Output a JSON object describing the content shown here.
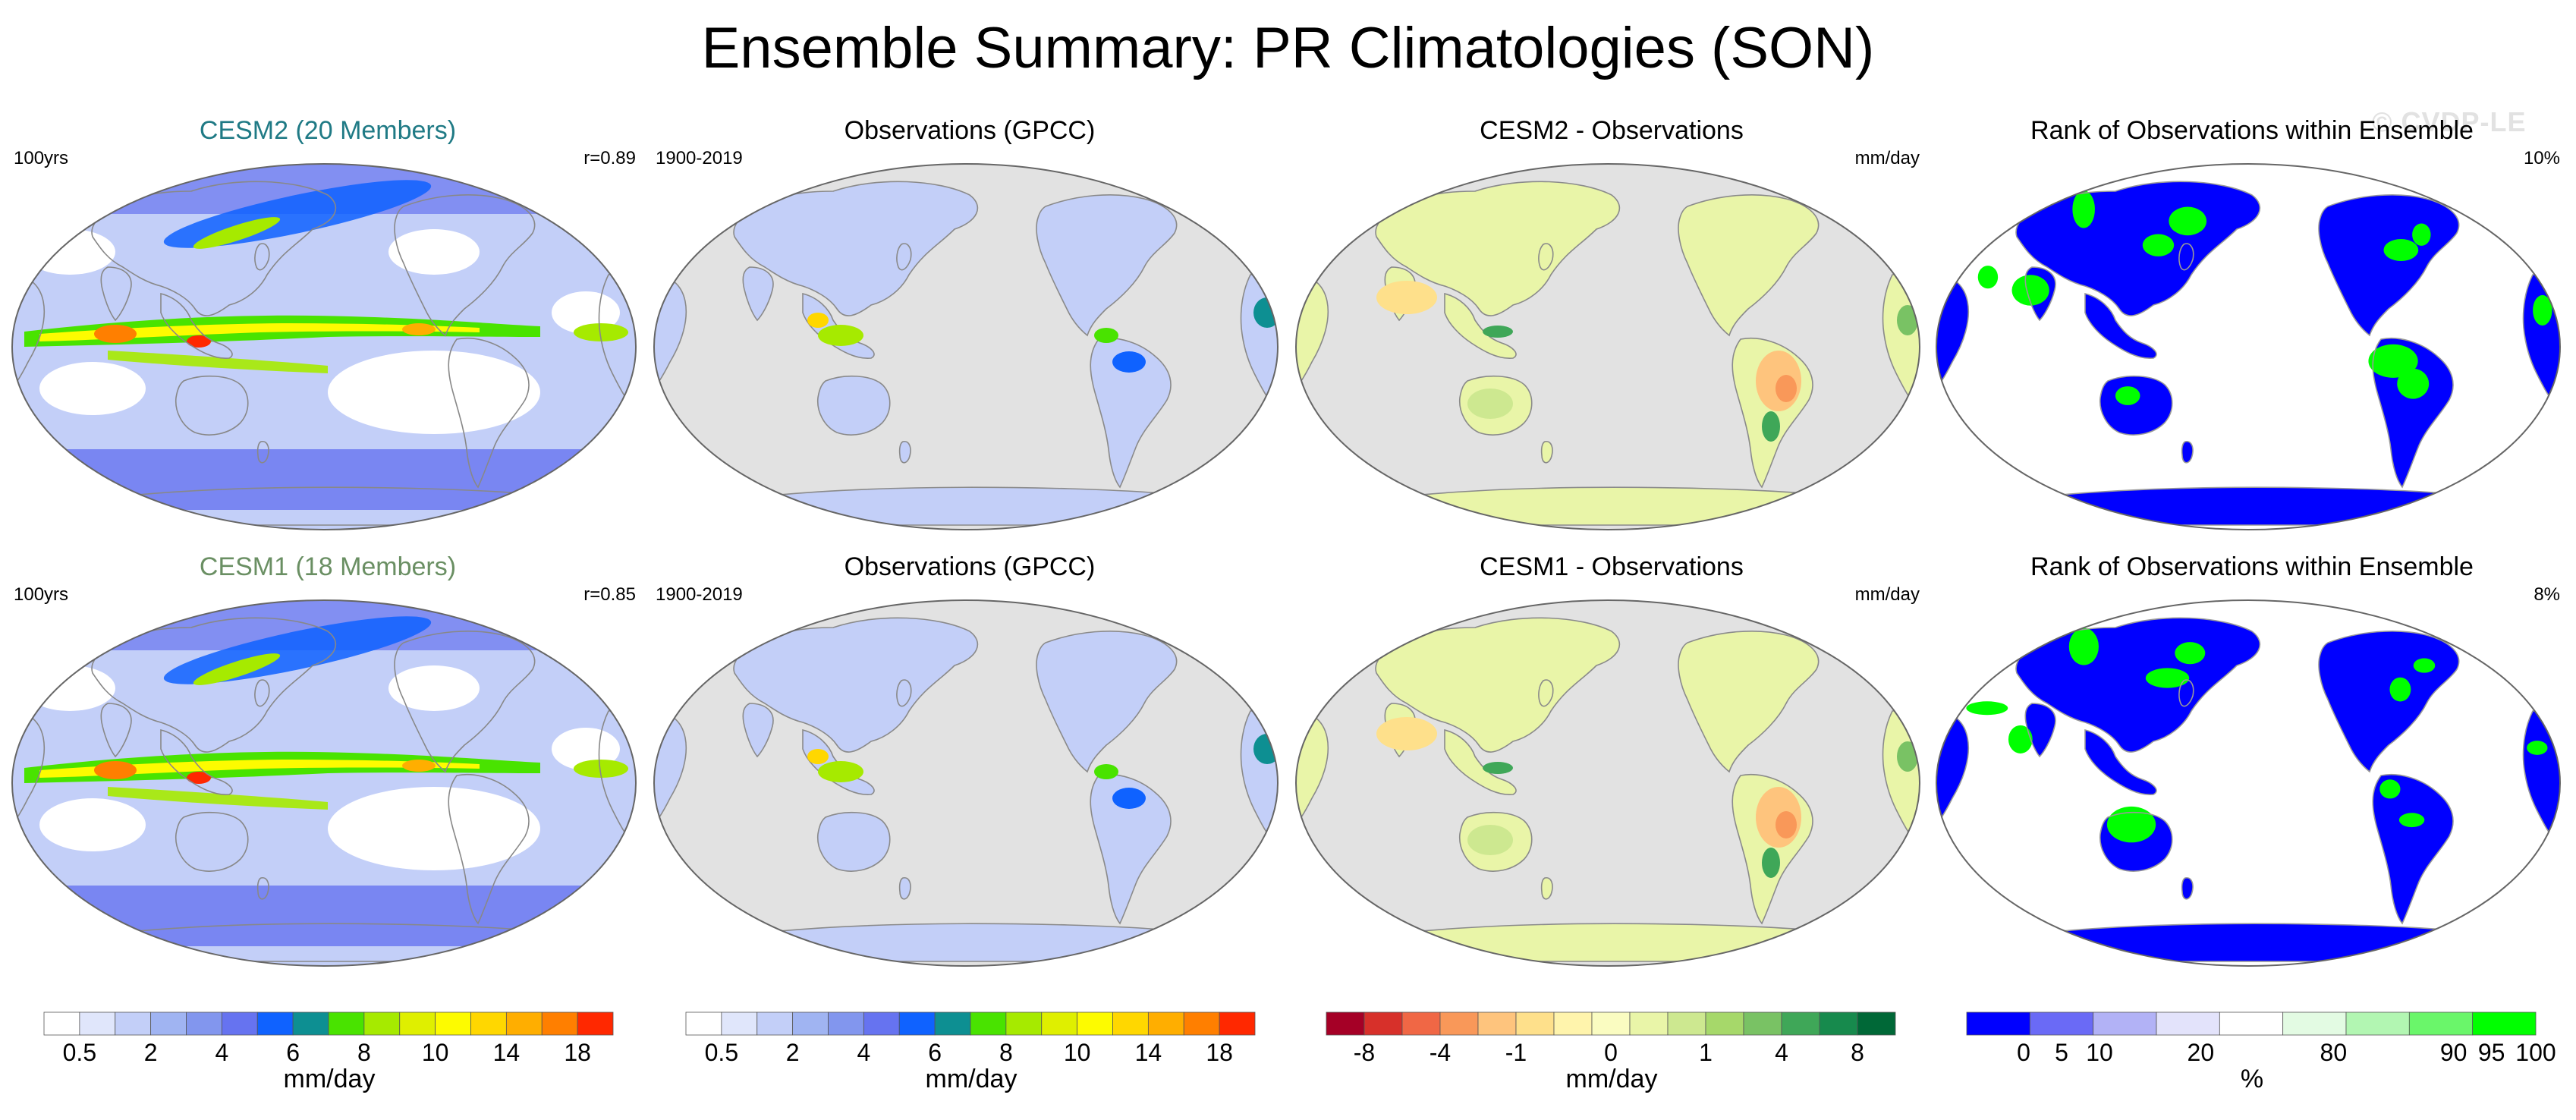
{
  "title": "Ensemble Summary: PR Climatologies (SON)",
  "watermark": "© CVDP-LE",
  "rows": [
    {
      "panels": [
        {
          "id": "cesm2",
          "title": "CESM2 (20 Members)",
          "title_style": "cesm2",
          "left_label": "100yrs",
          "right_label": "r=0.89",
          "map_type": "climo-model"
        },
        {
          "id": "obs-a",
          "title": "Observations (GPCC)",
          "title_style": "",
          "left_label": "1900-2019",
          "right_label": "",
          "map_type": "climo-obs"
        },
        {
          "id": "diff2",
          "title": "CESM2 - Observations",
          "title_style": "",
          "left_label": "",
          "right_label": "mm/day",
          "map_type": "difference"
        },
        {
          "id": "rank2",
          "title": "Rank of Observations within Ensemble",
          "title_style": "",
          "left_label": "",
          "right_label": "10%",
          "map_type": "rank"
        }
      ]
    },
    {
      "panels": [
        {
          "id": "cesm1",
          "title": "CESM1 (18 Members)",
          "title_style": "cesm1",
          "left_label": "100yrs",
          "right_label": "r=0.85",
          "map_type": "climo-model"
        },
        {
          "id": "obs-b",
          "title": "Observations (GPCC)",
          "title_style": "",
          "left_label": "1900-2019",
          "right_label": "",
          "map_type": "climo-obs"
        },
        {
          "id": "diff1",
          "title": "CESM1 - Observations",
          "title_style": "",
          "left_label": "",
          "right_label": "mm/day",
          "map_type": "difference"
        },
        {
          "id": "rank1",
          "title": "Rank of Observations within Ensemble",
          "title_style": "",
          "left_label": "",
          "right_label": "8%",
          "map_type": "rank"
        }
      ]
    }
  ],
  "colorbars": [
    {
      "id": "climo-a",
      "label": "mm/day",
      "colors": [
        "#ffffff",
        "#e0e6fb",
        "#c3cff8",
        "#a0b4f2",
        "#8296ee",
        "#6673f0",
        "#0f62ff",
        "#0d8f92",
        "#49e300",
        "#a6ea00",
        "#dfef00",
        "#fdfb00",
        "#ffd700",
        "#ffae00",
        "#ff7f00",
        "#ff2800"
      ],
      "tick_labels": [
        "0.5",
        "2",
        "4",
        "6",
        "8",
        "10",
        "14",
        "18"
      ],
      "tick_boundaries": [
        1,
        3,
        5,
        7,
        9,
        11,
        13,
        15
      ]
    },
    {
      "id": "climo-b",
      "label": "mm/day",
      "colors": [
        "#ffffff",
        "#e0e6fb",
        "#c3cff8",
        "#a0b4f2",
        "#8296ee",
        "#6673f0",
        "#0f62ff",
        "#0d8f92",
        "#49e300",
        "#a6ea00",
        "#dfef00",
        "#fdfb00",
        "#ffd700",
        "#ffae00",
        "#ff7f00",
        "#ff2800"
      ],
      "tick_labels": [
        "0.5",
        "2",
        "4",
        "6",
        "8",
        "10",
        "14",
        "18"
      ],
      "tick_boundaries": [
        1,
        3,
        5,
        7,
        9,
        11,
        13,
        15
      ]
    },
    {
      "id": "diff",
      "label": "mm/day",
      "colors": [
        "#a50026",
        "#d7302a",
        "#f06745",
        "#f99859",
        "#fec47d",
        "#fee08b",
        "#fff4ac",
        "#fafcc1",
        "#e9f5a8",
        "#cde890",
        "#a6d86a",
        "#79c264",
        "#3fa758",
        "#178a4d",
        "#006837"
      ],
      "tick_labels": [
        "-8",
        "-4",
        "-1",
        "0",
        "1",
        "4",
        "8"
      ],
      "tick_boundaries": [
        1,
        3,
        5,
        7.5,
        10,
        12,
        14
      ]
    },
    {
      "id": "rank",
      "label": "%",
      "colors": [
        "#0000ff",
        "#6a6af6",
        "#b2b2f6",
        "#e3e3fb",
        "#ffffff",
        "#e3fbe3",
        "#b2f6b2",
        "#6af66a",
        "#00ff00"
      ],
      "tick_labels": [
        "0",
        "5",
        "10",
        "20",
        "80",
        "90",
        "95",
        "100"
      ],
      "tick_boundaries": [
        0.9,
        1.5,
        2.1,
        3.7,
        5.8,
        7.7,
        8.3,
        9
      ]
    }
  ]
}
